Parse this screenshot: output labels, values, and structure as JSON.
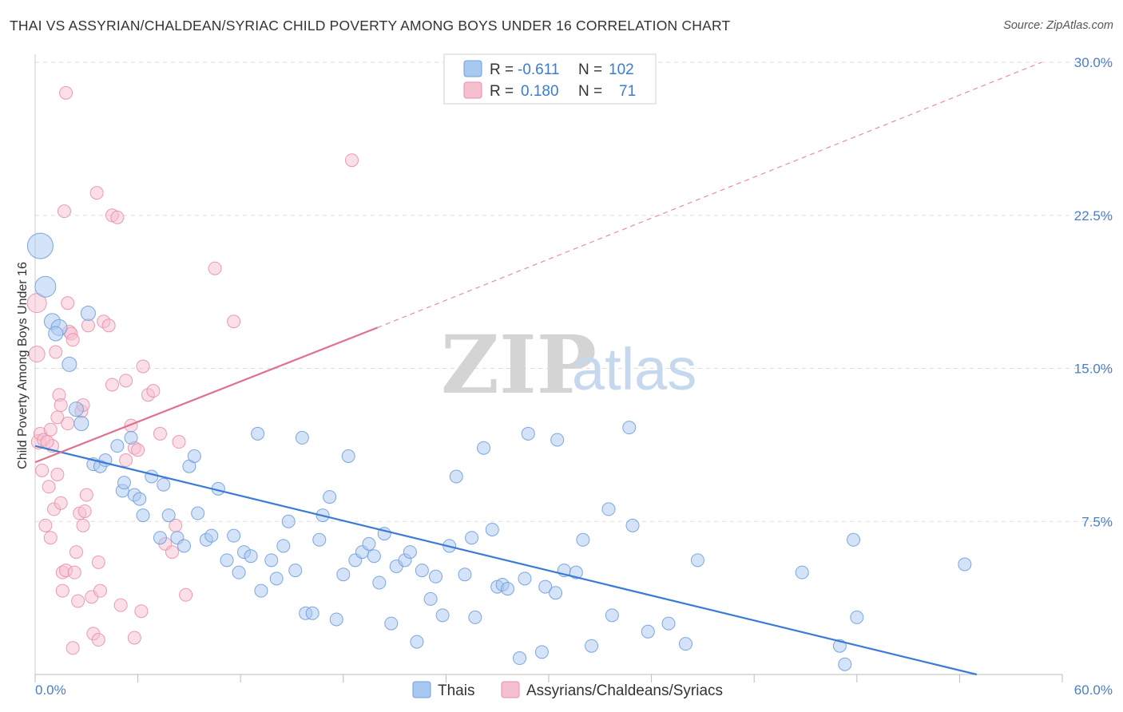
{
  "title": "THAI VS ASSYRIAN/CHALDEAN/SYRIAC CHILD POVERTY AMONG BOYS UNDER 16 CORRELATION CHART",
  "source": "Source: ZipAtlas.com",
  "watermark": {
    "zip": "ZIP",
    "atlas": "atlas"
  },
  "colors": {
    "blue_fill": "#a9c8ef",
    "blue_stroke": "#6f9fdc",
    "blue_line": "#3a7bd5",
    "pink_fill": "#f6bfd0",
    "pink_stroke": "#ea8fac",
    "pink_line": "#e0708f",
    "grid": "#dddddd",
    "axis_text": "#4a7ec9"
  },
  "legend": {
    "rows": [
      {
        "r_label": "R =",
        "r_value": "-0.611",
        "n_label": "N =",
        "n_value": "102"
      },
      {
        "r_label": "R =",
        "r_value": "0.180",
        "n_label": "N =",
        "n_value": "71"
      }
    ],
    "bottom": [
      "Thais",
      "Assyrians/Chaldeans/Syriacs"
    ]
  },
  "chart_data": {
    "type": "scatter",
    "title": "THAI VS ASSYRIAN/CHALDEAN/SYRIAC CHILD POVERTY AMONG BOYS UNDER 16 CORRELATION CHART",
    "xlabel": "",
    "ylabel": "Child Poverty Among Boys Under 16",
    "xlim": [
      0,
      60
    ],
    "ylim": [
      0,
      30
    ],
    "x_tick_labels": [
      "0.0%",
      "60.0%"
    ],
    "y_ticks": [
      7.5,
      15.0,
      22.5,
      30.0
    ],
    "y_tick_labels": [
      "7.5%",
      "15.0%",
      "22.5%",
      "30.0%"
    ],
    "grid": "horizontal dashed",
    "legend_position": "top-center",
    "series": [
      {
        "name": "Thais",
        "r": -0.611,
        "n": 102,
        "trend": {
          "x0": 0,
          "y0": 11.2,
          "x1": 55,
          "y1": 0,
          "dashed_after": null
        },
        "points": [
          [
            0.3,
            21.0,
            16
          ],
          [
            0.6,
            19.0,
            13
          ],
          [
            1.0,
            17.3,
            10
          ],
          [
            1.4,
            17.0,
            10
          ],
          [
            1.2,
            16.7,
            9
          ],
          [
            3.1,
            17.7,
            9
          ],
          [
            2.0,
            15.2,
            9
          ],
          [
            2.4,
            13.0,
            9
          ],
          [
            2.7,
            12.3,
            9
          ],
          [
            3.4,
            10.3,
            8
          ],
          [
            3.8,
            10.2,
            8
          ],
          [
            4.1,
            10.5,
            8
          ],
          [
            4.8,
            11.2,
            8
          ],
          [
            5.1,
            9.0,
            8
          ],
          [
            5.2,
            9.4,
            8
          ],
          [
            5.6,
            11.6,
            8
          ],
          [
            5.8,
            8.8,
            8
          ],
          [
            6.1,
            8.6,
            8
          ],
          [
            6.3,
            7.8,
            8
          ],
          [
            6.8,
            9.7,
            8
          ],
          [
            7.3,
            6.7,
            8
          ],
          [
            7.5,
            9.3,
            8
          ],
          [
            7.8,
            7.8,
            8
          ],
          [
            8.3,
            6.7,
            8
          ],
          [
            8.7,
            6.3,
            8
          ],
          [
            9.0,
            10.2,
            8
          ],
          [
            9.3,
            10.7,
            8
          ],
          [
            9.5,
            7.9,
            8
          ],
          [
            10.0,
            6.6,
            8
          ],
          [
            10.3,
            6.8,
            8
          ],
          [
            10.7,
            9.1,
            8
          ],
          [
            11.2,
            5.6,
            8
          ],
          [
            11.6,
            6.8,
            8
          ],
          [
            11.9,
            5.0,
            8
          ],
          [
            12.2,
            6.0,
            8
          ],
          [
            12.6,
            5.8,
            8
          ],
          [
            13.0,
            11.8,
            8
          ],
          [
            13.2,
            4.1,
            8
          ],
          [
            13.8,
            5.6,
            8
          ],
          [
            14.1,
            4.7,
            8
          ],
          [
            14.5,
            6.3,
            8
          ],
          [
            14.8,
            7.5,
            8
          ],
          [
            15.2,
            5.1,
            8
          ],
          [
            15.6,
            11.6,
            8
          ],
          [
            15.8,
            3.0,
            8
          ],
          [
            16.2,
            3.0,
            8
          ],
          [
            16.6,
            6.6,
            8
          ],
          [
            16.8,
            7.8,
            8
          ],
          [
            17.2,
            8.7,
            8
          ],
          [
            17.6,
            2.7,
            8
          ],
          [
            18.0,
            4.9,
            8
          ],
          [
            18.3,
            10.7,
            8
          ],
          [
            18.7,
            5.6,
            8
          ],
          [
            19.1,
            6.0,
            8
          ],
          [
            19.5,
            6.4,
            8
          ],
          [
            19.8,
            5.8,
            8
          ],
          [
            20.1,
            4.5,
            8
          ],
          [
            20.4,
            6.9,
            8
          ],
          [
            20.8,
            2.5,
            8
          ],
          [
            21.1,
            5.3,
            8
          ],
          [
            21.6,
            5.6,
            8
          ],
          [
            21.9,
            6.0,
            8
          ],
          [
            22.3,
            1.6,
            8
          ],
          [
            22.6,
            5.1,
            8
          ],
          [
            23.1,
            3.7,
            8
          ],
          [
            23.4,
            4.8,
            8
          ],
          [
            23.8,
            2.9,
            8
          ],
          [
            24.2,
            6.3,
            8
          ],
          [
            24.6,
            9.7,
            8
          ],
          [
            25.1,
            4.9,
            8
          ],
          [
            25.5,
            6.7,
            8
          ],
          [
            25.7,
            2.8,
            8
          ],
          [
            26.2,
            11.1,
            8
          ],
          [
            26.7,
            7.1,
            8
          ],
          [
            27.0,
            4.3,
            8
          ],
          [
            27.3,
            4.4,
            8
          ],
          [
            27.6,
            4.2,
            8
          ],
          [
            28.3,
            0.8,
            8
          ],
          [
            28.6,
            4.7,
            8
          ],
          [
            28.8,
            11.8,
            8
          ],
          [
            29.6,
            1.1,
            8
          ],
          [
            29.8,
            4.3,
            8
          ],
          [
            30.4,
            4.0,
            8
          ],
          [
            30.5,
            11.5,
            8
          ],
          [
            30.9,
            5.1,
            8
          ],
          [
            31.6,
            5.0,
            8
          ],
          [
            32.0,
            6.6,
            8
          ],
          [
            32.5,
            1.4,
            8
          ],
          [
            33.5,
            8.1,
            8
          ],
          [
            33.7,
            2.9,
            8
          ],
          [
            34.7,
            12.1,
            8
          ],
          [
            34.9,
            7.3,
            8
          ],
          [
            35.8,
            2.1,
            8
          ],
          [
            37.0,
            2.5,
            8
          ],
          [
            38.0,
            1.5,
            8
          ],
          [
            38.7,
            5.6,
            8
          ],
          [
            44.8,
            5.0,
            8
          ],
          [
            47.0,
            1.4,
            8
          ],
          [
            47.3,
            0.5,
            8
          ],
          [
            47.8,
            6.6,
            8
          ],
          [
            48.0,
            2.8,
            8
          ],
          [
            54.3,
            5.4,
            8
          ]
        ]
      },
      {
        "name": "Assyrians/Chaldeans/Syriacs",
        "r": 0.18,
        "n": 71,
        "trend": {
          "x0": 0,
          "y0": 10.4,
          "x1": 20,
          "y1": 17.0,
          "dashed_x1": 58.8,
          "dashed_y1": 30.0
        },
        "points": [
          [
            0.1,
            18.2,
            12
          ],
          [
            0.1,
            15.7,
            10
          ],
          [
            0.2,
            11.4,
            9
          ],
          [
            0.3,
            11.8,
            8
          ],
          [
            0.4,
            10.0,
            8
          ],
          [
            0.5,
            11.5,
            8
          ],
          [
            0.6,
            7.3,
            8
          ],
          [
            0.8,
            9.2,
            8
          ],
          [
            0.9,
            12.0,
            8
          ],
          [
            0.9,
            6.7,
            8
          ],
          [
            1.0,
            11.2,
            8
          ],
          [
            1.1,
            8.1,
            8
          ],
          [
            1.2,
            15.8,
            8
          ],
          [
            1.3,
            9.8,
            8
          ],
          [
            1.3,
            12.6,
            8
          ],
          [
            1.4,
            13.7,
            8
          ],
          [
            1.5,
            13.2,
            8
          ],
          [
            1.5,
            8.4,
            8
          ],
          [
            1.6,
            4.1,
            8
          ],
          [
            1.6,
            5.0,
            8
          ],
          [
            1.8,
            5.1,
            8
          ],
          [
            1.9,
            12.3,
            8
          ],
          [
            2.0,
            16.8,
            8
          ],
          [
            2.1,
            16.7,
            8
          ],
          [
            1.7,
            22.7,
            8
          ],
          [
            1.9,
            18.2,
            8
          ],
          [
            1.8,
            28.5,
            8
          ],
          [
            2.2,
            1.3,
            8
          ],
          [
            2.3,
            5.0,
            8
          ],
          [
            2.4,
            6.0,
            8
          ],
          [
            2.5,
            3.6,
            8
          ],
          [
            2.6,
            7.9,
            8
          ],
          [
            2.7,
            12.9,
            8
          ],
          [
            2.8,
            13.2,
            8
          ],
          [
            2.8,
            7.3,
            8
          ],
          [
            2.9,
            8.0,
            8
          ],
          [
            3.0,
            8.8,
            8
          ],
          [
            3.1,
            17.1,
            8
          ],
          [
            3.4,
            2.0,
            8
          ],
          [
            3.3,
            3.8,
            8
          ],
          [
            3.6,
            23.6,
            8
          ],
          [
            3.7,
            5.5,
            8
          ],
          [
            3.7,
            1.7,
            8
          ],
          [
            3.8,
            4.1,
            8
          ],
          [
            4.0,
            17.3,
            8
          ],
          [
            4.3,
            17.1,
            8
          ],
          [
            4.5,
            14.2,
            8
          ],
          [
            4.5,
            22.5,
            8
          ],
          [
            4.8,
            22.4,
            8
          ],
          [
            5.0,
            3.4,
            8
          ],
          [
            5.3,
            14.4,
            8
          ],
          [
            5.3,
            10.5,
            8
          ],
          [
            5.6,
            12.2,
            8
          ],
          [
            5.8,
            11.1,
            8
          ],
          [
            5.8,
            1.8,
            8
          ],
          [
            6.0,
            11.0,
            8
          ],
          [
            6.2,
            3.1,
            8
          ],
          [
            6.3,
            15.1,
            8
          ],
          [
            6.6,
            13.7,
            8
          ],
          [
            6.9,
            13.9,
            8
          ],
          [
            7.3,
            11.8,
            8
          ],
          [
            7.6,
            6.4,
            8
          ],
          [
            8.0,
            6.0,
            8
          ],
          [
            8.2,
            7.3,
            8
          ],
          [
            8.4,
            11.4,
            8
          ],
          [
            8.8,
            3.9,
            8
          ],
          [
            10.5,
            19.9,
            8
          ],
          [
            11.6,
            17.3,
            8
          ],
          [
            18.5,
            25.2,
            8
          ],
          [
            0.7,
            11.4,
            8
          ],
          [
            2.2,
            16.4,
            8
          ]
        ]
      }
    ]
  }
}
